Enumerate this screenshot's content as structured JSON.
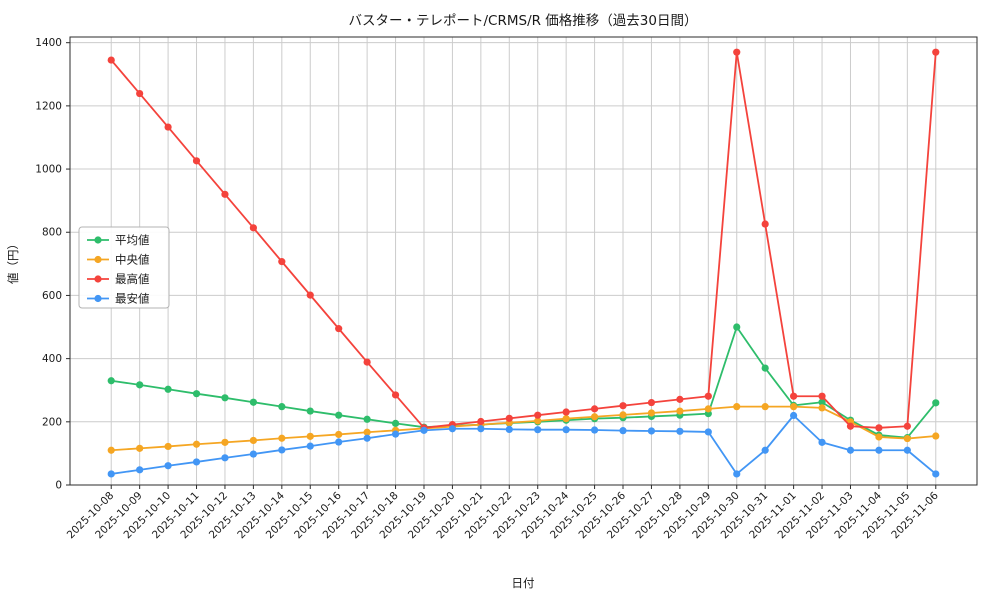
{
  "figure": {
    "background": "#ffffff"
  },
  "chart_data": {
    "type": "line",
    "title": "バスター・テレポート/CRMS/R 価格推移（過去30日間）",
    "xlabel": "日付",
    "ylabel": "値（円）",
    "grid": true,
    "legend_position": "center-left",
    "ylim": [
      0,
      1418
    ],
    "yticks": [
      0,
      200,
      400,
      600,
      800,
      1000,
      1200,
      1400
    ],
    "x_dates": [
      "2025-10-08",
      "2025-10-09",
      "2025-10-10",
      "2025-10-11",
      "2025-10-12",
      "2025-10-13",
      "2025-10-14",
      "2025-10-15",
      "2025-10-16",
      "2025-10-17",
      "2025-10-18",
      "2025-10-19",
      "2025-10-20",
      "2025-10-21",
      "2025-10-22",
      "2025-10-23",
      "2025-10-24",
      "2025-10-25",
      "2025-10-26",
      "2025-10-27",
      "2025-10-28",
      "2025-10-29",
      "2025-10-30",
      "2025-10-31",
      "2025-11-01",
      "2025-11-02",
      "2025-11-03",
      "2025-11-04",
      "2025-11-05",
      "2025-11-06"
    ],
    "series": [
      {
        "key": "average",
        "name": "平均値",
        "color": "#2ebd6b",
        "values": [
          330,
          317,
          303,
          289,
          276,
          262,
          248,
          234,
          221,
          208,
          195,
          183,
          187,
          191,
          196,
          200,
          205,
          210,
          213,
          217,
          221,
          226,
          500,
          370,
          252,
          262,
          205,
          158,
          150,
          260
        ]
      },
      {
        "key": "median",
        "name": "中央値",
        "color": "#f5a623",
        "values": [
          110,
          116,
          122,
          129,
          135,
          141,
          148,
          154,
          160,
          167,
          173,
          179,
          185,
          191,
          197,
          203,
          210,
          216,
          222,
          228,
          234,
          241,
          248,
          248,
          248,
          244,
          200,
          152,
          147,
          155
        ]
      },
      {
        "key": "max",
        "name": "最高値",
        "color": "#f4433c",
        "values": [
          1345,
          1239,
          1133,
          1026,
          920,
          814,
          707,
          601,
          495,
          389,
          285,
          181,
          191,
          201,
          211,
          221,
          231,
          241,
          251,
          261,
          271,
          281,
          1370,
          826,
          281,
          281,
          186,
          181,
          186,
          1370
        ]
      },
      {
        "key": "min",
        "name": "最安値",
        "color": "#4296f5",
        "values": [
          35,
          48,
          61,
          73,
          86,
          98,
          111,
          123,
          136,
          148,
          161,
          173,
          178,
          178,
          176,
          175,
          175,
          174,
          172,
          171,
          170,
          168,
          35,
          110,
          220,
          135,
          110,
          110,
          110,
          35
        ]
      }
    ]
  }
}
